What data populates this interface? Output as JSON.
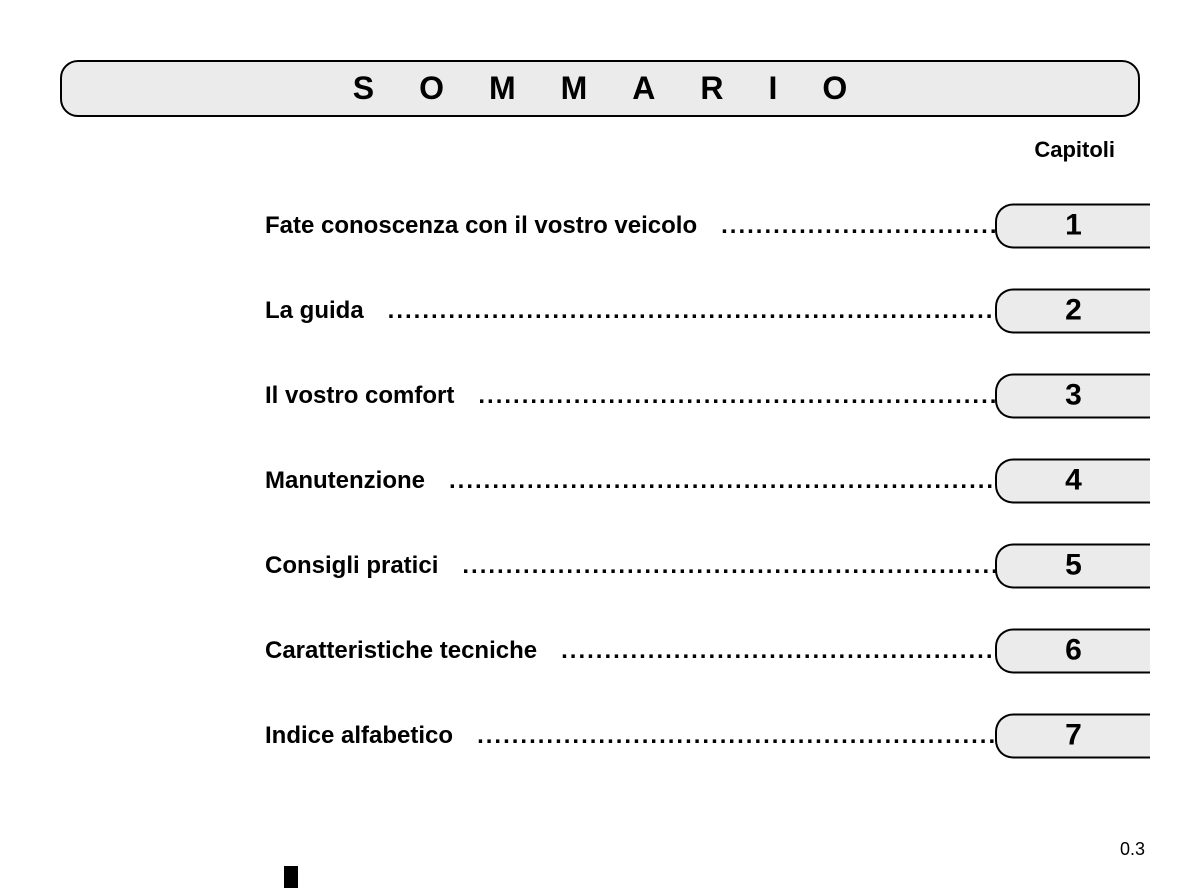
{
  "page": {
    "title": "SOMMARIO",
    "column_header": "Capitoli",
    "page_number": "0.3",
    "background_color": "#ffffff",
    "box_background_color": "#ebebeb",
    "border_color": "#000000",
    "text_color": "#000000",
    "title_fontsize": 32,
    "chapter_title_fontsize": 24,
    "chapter_number_fontsize": 30,
    "column_header_fontsize": 22,
    "page_number_fontsize": 18,
    "title_letter_spacing": 45,
    "border_radius": 18,
    "tab_width": 155,
    "tab_height": 45
  },
  "chapters": [
    {
      "title": "Fate conoscenza con il vostro veicolo",
      "number": "1"
    },
    {
      "title": "La guida",
      "number": "2"
    },
    {
      "title": "Il vostro comfort",
      "number": "3"
    },
    {
      "title": "Manutenzione",
      "number": "4"
    },
    {
      "title": "Consigli pratici",
      "number": "5"
    },
    {
      "title": "Caratteristiche tecniche",
      "number": "6"
    },
    {
      "title": "Indice alfabetico",
      "number": "7"
    }
  ],
  "dots": "................................................................................................................"
}
